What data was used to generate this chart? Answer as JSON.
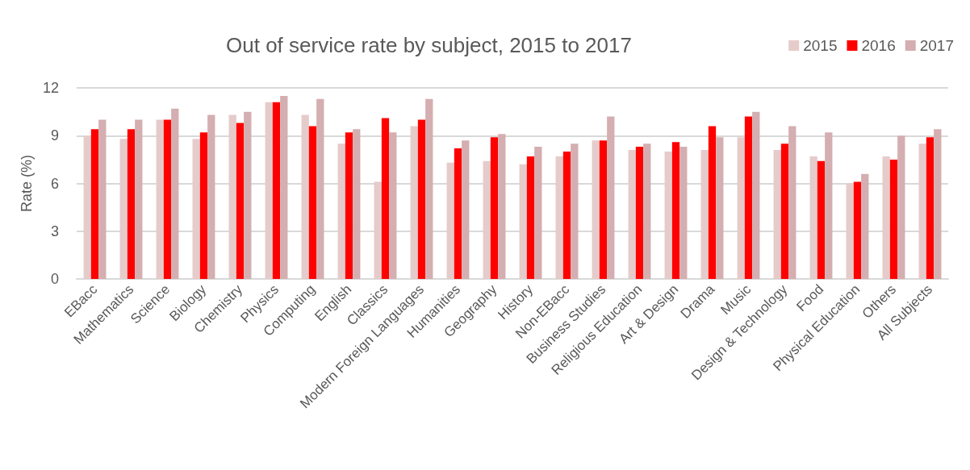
{
  "chart_data": {
    "type": "bar",
    "title": "Out of service rate by subject, 2015 to 2017",
    "ylabel": "Rate (%)",
    "categories": [
      "EBacc",
      "Mathematics",
      "Science",
      "Biology",
      "Chemistry",
      "Physics",
      "Computing",
      "English",
      "Classics",
      "Modern Foreign Languages",
      "Humanities",
      "Geography",
      "History",
      "Non-EBacc",
      "Business Studies",
      "Religious Education",
      "Art & Design",
      "Drama",
      "Music",
      "Design & Technology",
      "Food",
      "Physical Education",
      "Others",
      "All Subjects"
    ],
    "series": [
      {
        "name": "2015",
        "color": "#e6cbcb",
        "values": [
          9.0,
          8.8,
          10.0,
          8.8,
          10.3,
          11.1,
          10.3,
          8.5,
          6.1,
          9.6,
          7.3,
          7.4,
          7.2,
          7.7,
          8.7,
          8.1,
          8.0,
          8.1,
          8.9,
          8.1,
          7.7,
          6.0,
          7.7,
          8.5
        ]
      },
      {
        "name": "2016",
        "color": "#ff0000",
        "values": [
          9.4,
          9.4,
          10.0,
          9.2,
          9.8,
          11.1,
          9.6,
          9.2,
          10.1,
          10.0,
          8.2,
          8.9,
          7.7,
          8.0,
          8.7,
          8.3,
          8.6,
          9.6,
          10.2,
          8.5,
          7.4,
          6.1,
          7.5,
          8.9
        ]
      },
      {
        "name": "2017",
        "color": "#d4aeb0",
        "values": [
          10.0,
          10.0,
          10.7,
          10.3,
          10.5,
          11.5,
          11.3,
          9.4,
          9.2,
          11.3,
          8.7,
          9.1,
          8.3,
          8.5,
          10.2,
          8.5,
          8.3,
          8.9,
          10.5,
          9.6,
          9.2,
          6.6,
          9.0,
          9.4
        ]
      }
    ],
    "ylim": [
      0,
      12
    ],
    "yticks": [
      0,
      3,
      6,
      9,
      12
    ],
    "grid": "y",
    "legend": "top right"
  }
}
